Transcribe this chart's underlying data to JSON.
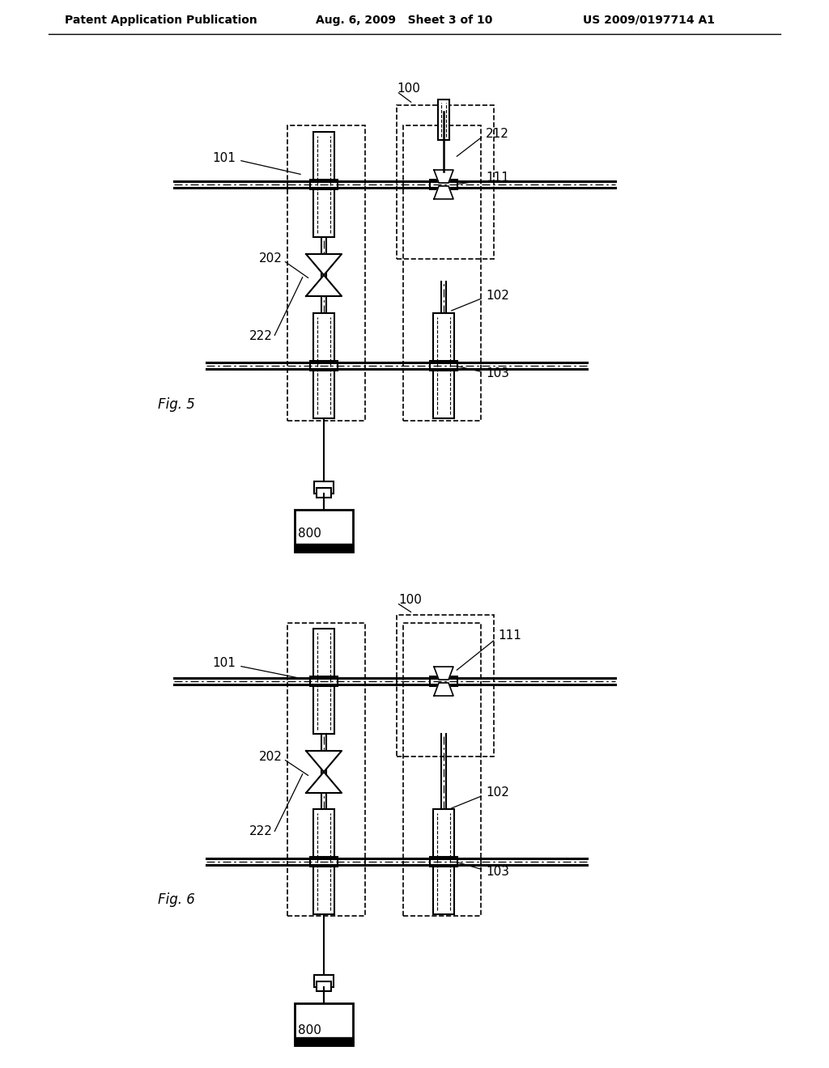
{
  "header_left": "Patent Application Publication",
  "header_mid": "Aug. 6, 2009   Sheet 3 of 10",
  "header_right": "US 2009/0197714 A1",
  "fig5_label": "Fig. 5",
  "fig6_label": "Fig. 6",
  "background": "#ffffff",
  "line_color": "#000000"
}
